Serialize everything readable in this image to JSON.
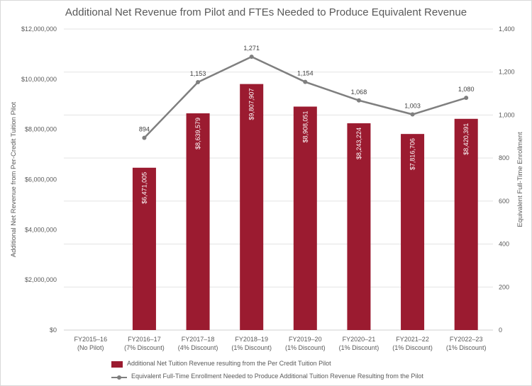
{
  "chart_data": {
    "type": "bar+line",
    "title": "Additional Net Revenue from Pilot and FTEs Needed to Produce Equivalent Revenue",
    "categories": [
      [
        "FY2015–16",
        "(No Pilot)"
      ],
      [
        "FY2016–17",
        "(7% Discount)"
      ],
      [
        "FY2017–18",
        "(4% Discount)"
      ],
      [
        "FY2018–19",
        "(1% Discount)"
      ],
      [
        "FY2019–20",
        "(1% Discount)"
      ],
      [
        "FY2020–21",
        "(1% Discount)"
      ],
      [
        "FY2021–22",
        "(1% Discount)"
      ],
      [
        "FY2022–23",
        "(1% Discount)"
      ]
    ],
    "series": [
      {
        "name": "Additional Net Tuition Revenue resulting from the Per Credit Tuition Pilot",
        "type": "bar",
        "axis": "left",
        "color": "#9b1b30",
        "values": [
          null,
          6471005,
          8639579,
          9807907,
          8908051,
          8243224,
          7816706,
          8420391
        ],
        "labels": [
          null,
          "$6,471,005",
          "$8,639,579",
          "$9,807,907",
          "$8,908,051",
          "$8,243,224",
          "$7,816,706",
          "$8,420,391"
        ]
      },
      {
        "name": "Equivalent Full-Time Enrollment Needed to Produce Additional Tuition Revenue Resulting from the Pilot",
        "type": "line",
        "axis": "right",
        "color": "#7f7f7f",
        "values": [
          null,
          894,
          1153,
          1271,
          1154,
          1068,
          1003,
          1080
        ],
        "labels": [
          null,
          "894",
          "1,153",
          "1,271",
          "1,154",
          "1,068",
          "1,003",
          "1,080"
        ]
      }
    ],
    "y_left": {
      "label": "Additional Net Revenue from Per-Credit Tuition Pilot",
      "range": [
        0,
        12000000
      ],
      "ticks": [
        0,
        2000000,
        4000000,
        6000000,
        8000000,
        10000000,
        12000000
      ],
      "tick_labels": [
        "$0",
        "$2,000,000",
        "$4,000,000",
        "$6,000,000",
        "$8,000,000",
        "$10,000,000",
        "$12,000,000"
      ]
    },
    "y_right": {
      "label": "Equivalent Full-Time Enrollment",
      "range": [
        0,
        1400
      ],
      "ticks": [
        0,
        200,
        400,
        600,
        800,
        1000,
        1200,
        1400
      ],
      "tick_labels": [
        "0",
        "200",
        "400",
        "600",
        "800",
        "1,000",
        "1,200",
        "1,400"
      ]
    },
    "grid": true,
    "legend_position": "bottom"
  }
}
